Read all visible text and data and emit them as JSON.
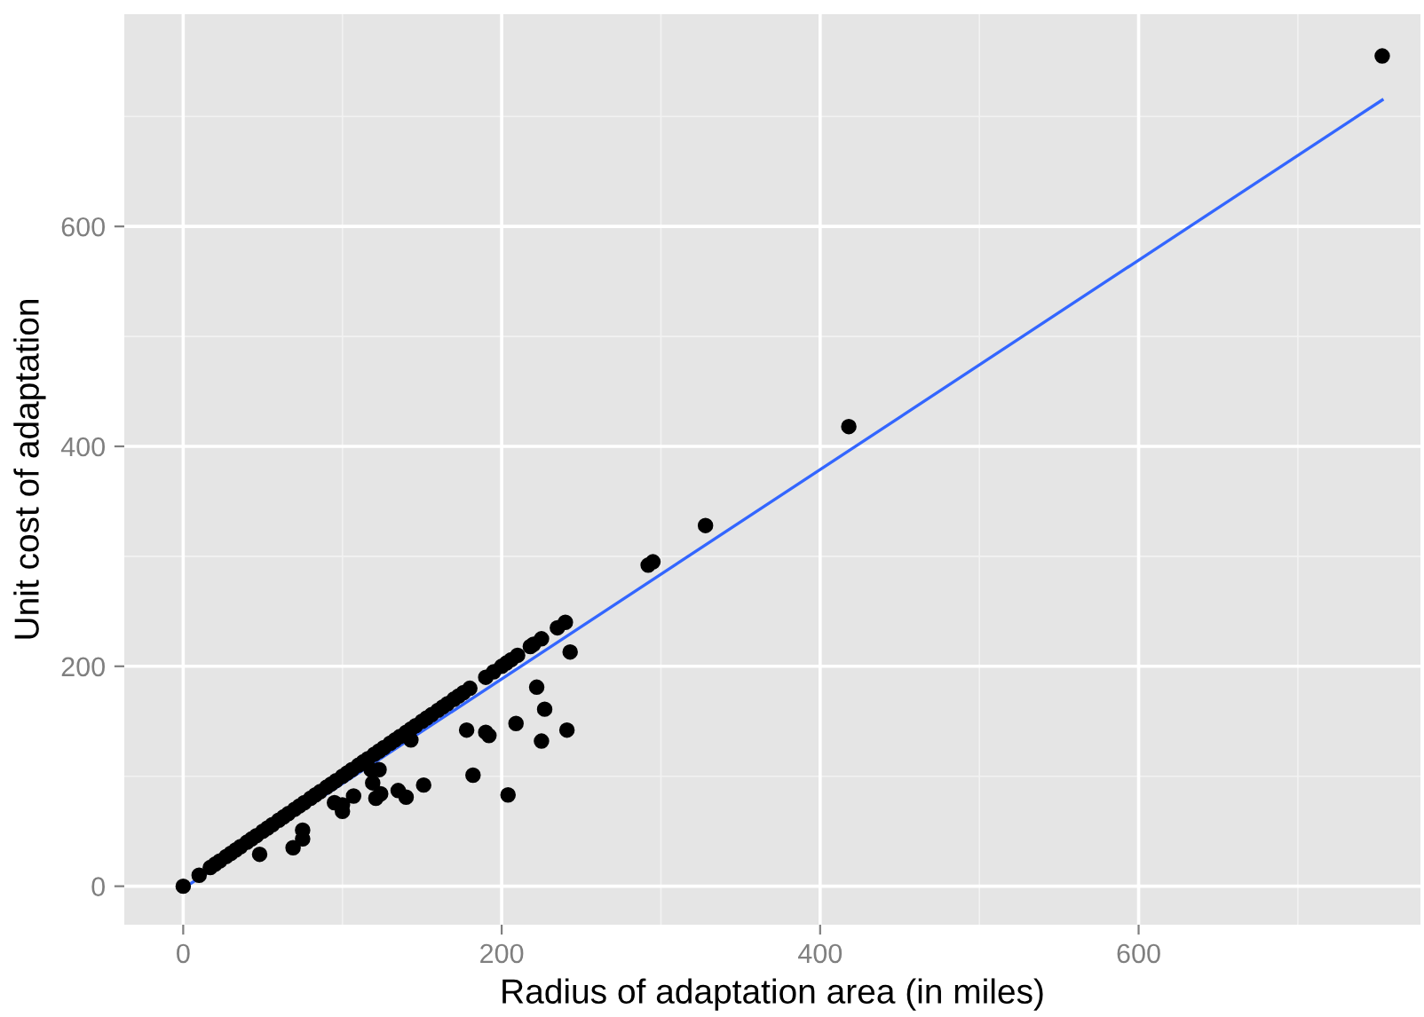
{
  "chart_data": {
    "type": "scatter",
    "xlabel": "Radius of adaptation area (in miles)",
    "ylabel": "Unit cost of adaptation",
    "xlim": [
      -37,
      777
    ],
    "ylim": [
      -35,
      793
    ],
    "xticks": [
      0,
      200,
      400,
      600
    ],
    "yticks": [
      0,
      200,
      400,
      600
    ],
    "grid": true,
    "series": [
      {
        "marker": "circle",
        "color": "#000000",
        "x": [
          0,
          10,
          17,
          20,
          23,
          27,
          30,
          33,
          36,
          40,
          43,
          46,
          50,
          53,
          56,
          60,
          63,
          66,
          70,
          73,
          76,
          80,
          83,
          86,
          90,
          93,
          96,
          100,
          103,
          106,
          110,
          113,
          116,
          120,
          123,
          126,
          130,
          133,
          136,
          140,
          143,
          146,
          150,
          153,
          156,
          160,
          163,
          166,
          170,
          173,
          176,
          180,
          190,
          195,
          200,
          203,
          206,
          210,
          218,
          220,
          225,
          235,
          240,
          292,
          295,
          328,
          418,
          753,
          243,
          222,
          225,
          227,
          178,
          190,
          192,
          209,
          241,
          182,
          204,
          143,
          151,
          135,
          140,
          121,
          124,
          119,
          118,
          123,
          107,
          100,
          95,
          100,
          75,
          75,
          69,
          48
        ],
        "values": [
          0,
          10,
          17,
          20,
          23,
          27,
          30,
          33,
          36,
          40,
          43,
          46,
          50,
          53,
          56,
          60,
          63,
          66,
          70,
          73,
          76,
          80,
          83,
          86,
          90,
          93,
          96,
          100,
          103,
          106,
          110,
          113,
          116,
          120,
          123,
          126,
          130,
          133,
          136,
          140,
          143,
          146,
          150,
          153,
          156,
          160,
          163,
          166,
          170,
          173,
          176,
          180,
          190,
          195,
          200,
          203,
          206,
          210,
          218,
          220,
          225,
          235,
          240,
          292,
          295,
          328,
          418,
          755,
          213,
          181,
          132,
          161,
          142,
          140,
          137,
          148,
          142,
          101,
          83,
          133,
          92,
          87,
          81,
          80,
          84,
          94,
          106,
          106,
          82,
          68,
          76,
          74,
          43,
          51,
          35,
          29
        ]
      },
      {
        "type": "line",
        "color": "#3366ff",
        "x": [
          0,
          753
        ],
        "values": [
          -2,
          715
        ]
      }
    ]
  }
}
